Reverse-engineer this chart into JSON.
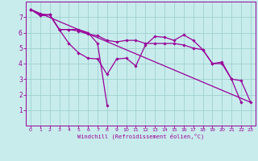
{
  "background_color": "#c8ecec",
  "grid_color": "#a0d0d0",
  "line_color": "#990099",
  "marker_color": "#990099",
  "xlim": [
    -0.5,
    23.5
  ],
  "ylim": [
    0,
    8
  ],
  "xticks": [
    0,
    1,
    2,
    3,
    4,
    5,
    6,
    7,
    8,
    9,
    10,
    11,
    12,
    13,
    14,
    15,
    16,
    17,
    18,
    19,
    20,
    21,
    22,
    23
  ],
  "yticks": [
    1,
    2,
    3,
    4,
    5,
    6,
    7
  ],
  "xlabel": "Windchill (Refroidissement éolien,°C)",
  "line1_x": [
    0,
    1,
    2,
    3,
    4,
    5,
    6,
    7,
    8,
    9,
    10,
    11,
    12,
    13,
    14,
    15,
    16,
    17,
    18,
    19,
    20,
    21,
    22
  ],
  "line1_y": [
    7.5,
    7.1,
    7.15,
    6.2,
    5.3,
    4.7,
    4.35,
    4.3,
    3.3,
    4.3,
    4.35,
    3.85,
    5.2,
    5.75,
    5.7,
    5.5,
    5.85,
    5.5,
    4.9,
    4.0,
    4.1,
    3.0,
    1.5
  ],
  "line2_x": [
    0,
    1,
    2,
    3,
    4,
    5,
    6,
    7,
    8
  ],
  "line2_y": [
    7.5,
    7.2,
    7.15,
    6.2,
    6.2,
    6.2,
    6.0,
    5.3,
    1.3
  ],
  "line3_x": [
    0,
    1,
    2,
    3,
    4,
    5,
    6,
    7,
    8,
    9,
    10,
    11,
    12,
    13,
    14,
    15,
    16,
    17,
    18,
    19,
    20,
    21,
    22,
    23
  ],
  "line3_y": [
    7.5,
    7.1,
    7.15,
    6.2,
    6.2,
    6.1,
    5.9,
    5.8,
    5.5,
    5.4,
    5.5,
    5.5,
    5.3,
    5.3,
    5.3,
    5.3,
    5.2,
    5.0,
    4.9,
    4.0,
    4.0,
    3.0,
    2.9,
    1.5
  ],
  "line4_x": [
    0,
    23
  ],
  "line4_y": [
    7.5,
    1.5
  ]
}
